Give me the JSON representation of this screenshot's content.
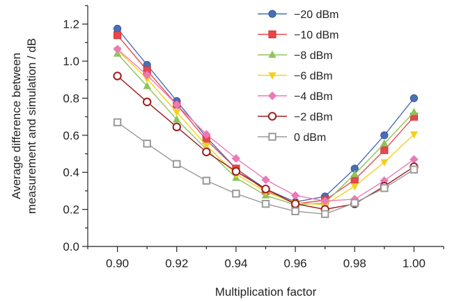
{
  "chart_data": {
    "type": "line",
    "title": "",
    "xlabel": "Multiplication factor",
    "ylabel_lines": [
      "Average difference between",
      "measurement and simulation / dB"
    ],
    "xlim": [
      0.89,
      1.01
    ],
    "ylim": [
      0.0,
      1.3
    ],
    "x": [
      0.9,
      0.91,
      0.92,
      0.93,
      0.94,
      0.95,
      0.96,
      0.97,
      0.98,
      0.99,
      1.0
    ],
    "x_ticks": [
      "0.90",
      "0.92",
      "0.94",
      "0.96",
      "0.98",
      "1.00"
    ],
    "y_ticks": [
      "0.0",
      "0.2",
      "0.4",
      "0.6",
      "0.8",
      "1.0",
      "1.2"
    ],
    "grid": false,
    "legend_position": "top-right",
    "series": [
      {
        "name": "−20 dBm",
        "marker": "circle-filled",
        "color": "#4a6fb5",
        "values": [
          1.175,
          0.98,
          0.785,
          0.59,
          0.42,
          0.31,
          0.24,
          0.27,
          0.42,
          0.6,
          0.8
        ]
      },
      {
        "name": "−10 dBm",
        "marker": "square-filled",
        "color": "#e8474a",
        "values": [
          1.14,
          0.95,
          0.765,
          0.575,
          0.42,
          0.3,
          0.23,
          0.25,
          0.36,
          0.52,
          0.7
        ]
      },
      {
        "name": "−8 dBm",
        "marker": "triangle-up",
        "color": "#8dc45b",
        "values": [
          1.04,
          0.865,
          0.685,
          0.525,
          0.37,
          0.275,
          0.225,
          0.235,
          0.39,
          0.555,
          0.725
        ]
      },
      {
        "name": "−6 dBm",
        "marker": "triangle-down",
        "color": "#f5d11d",
        "values": [
          1.06,
          0.905,
          0.725,
          0.545,
          0.39,
          0.295,
          0.235,
          0.225,
          0.325,
          0.455,
          0.605
        ]
      },
      {
        "name": "−4 dBm",
        "marker": "diamond",
        "color": "#ea7ab8",
        "values": [
          1.065,
          0.925,
          0.765,
          0.605,
          0.475,
          0.36,
          0.275,
          0.245,
          0.255,
          0.355,
          0.47
        ]
      },
      {
        "name": "−2 dBm",
        "marker": "circle-open",
        "color": "#9b1c1c",
        "values": [
          0.92,
          0.78,
          0.645,
          0.51,
          0.405,
          0.31,
          0.23,
          0.2,
          0.23,
          0.325,
          0.43
        ]
      },
      {
        "name": "0 dBm",
        "marker": "square-open",
        "color": "#999999",
        "values": [
          0.67,
          0.555,
          0.445,
          0.355,
          0.285,
          0.23,
          0.19,
          0.175,
          0.235,
          0.315,
          0.415
        ]
      }
    ]
  }
}
